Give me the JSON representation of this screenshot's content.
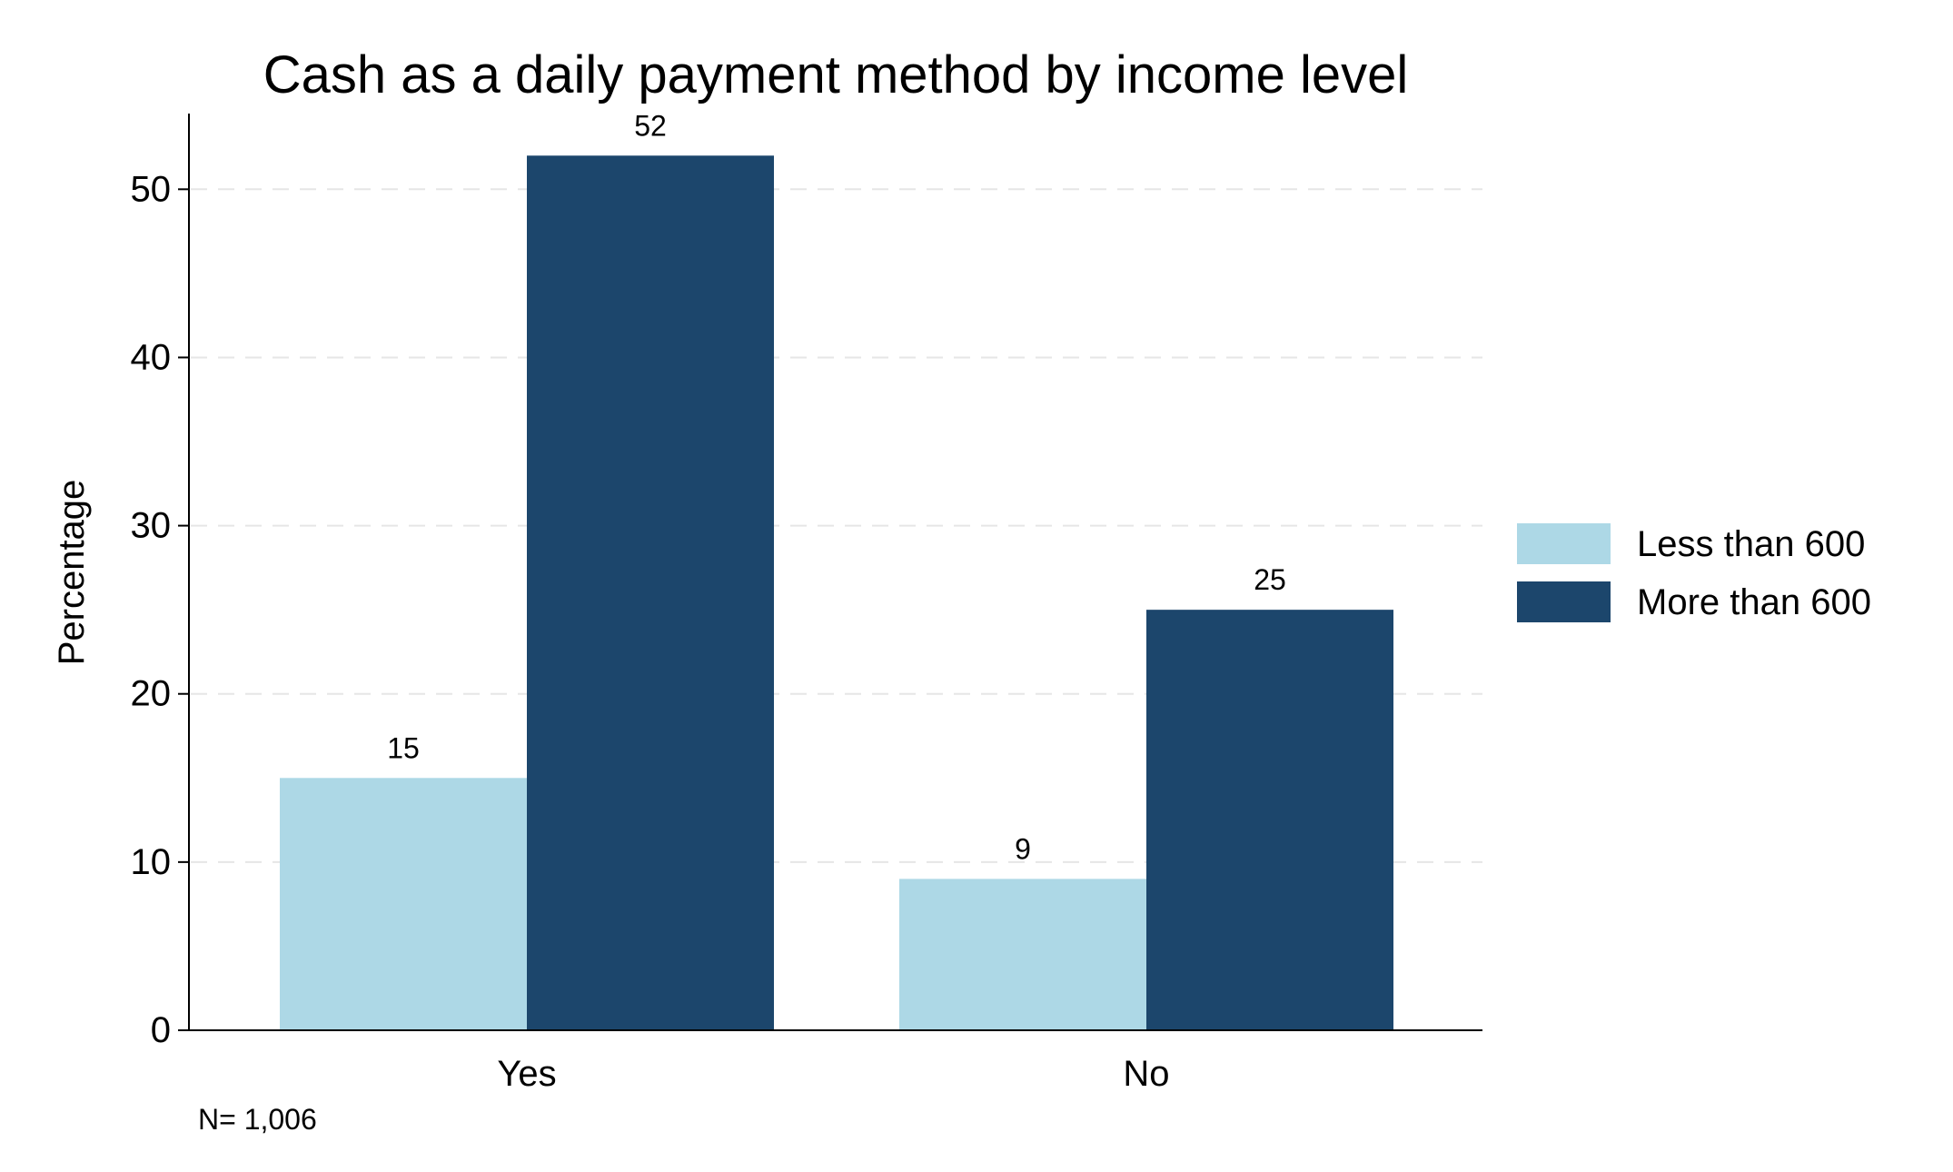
{
  "chart_data": {
    "type": "bar",
    "title": "Cash as a daily payment method by income level",
    "xlabel": "",
    "ylabel": "Percentage",
    "categories": [
      "Yes",
      "No"
    ],
    "series": [
      {
        "name": "Less than 600",
        "color": "#add8e6",
        "values": [
          15,
          9
        ]
      },
      {
        "name": "More than 600",
        "color": "#1c466c",
        "values": [
          52,
          25
        ]
      }
    ],
    "ylim": [
      0,
      54.5
    ],
    "yticks": [
      0,
      10,
      20,
      30,
      40,
      50
    ],
    "grid": "horizontal dashed",
    "legend_position": "right",
    "note": "N= 1,006"
  }
}
